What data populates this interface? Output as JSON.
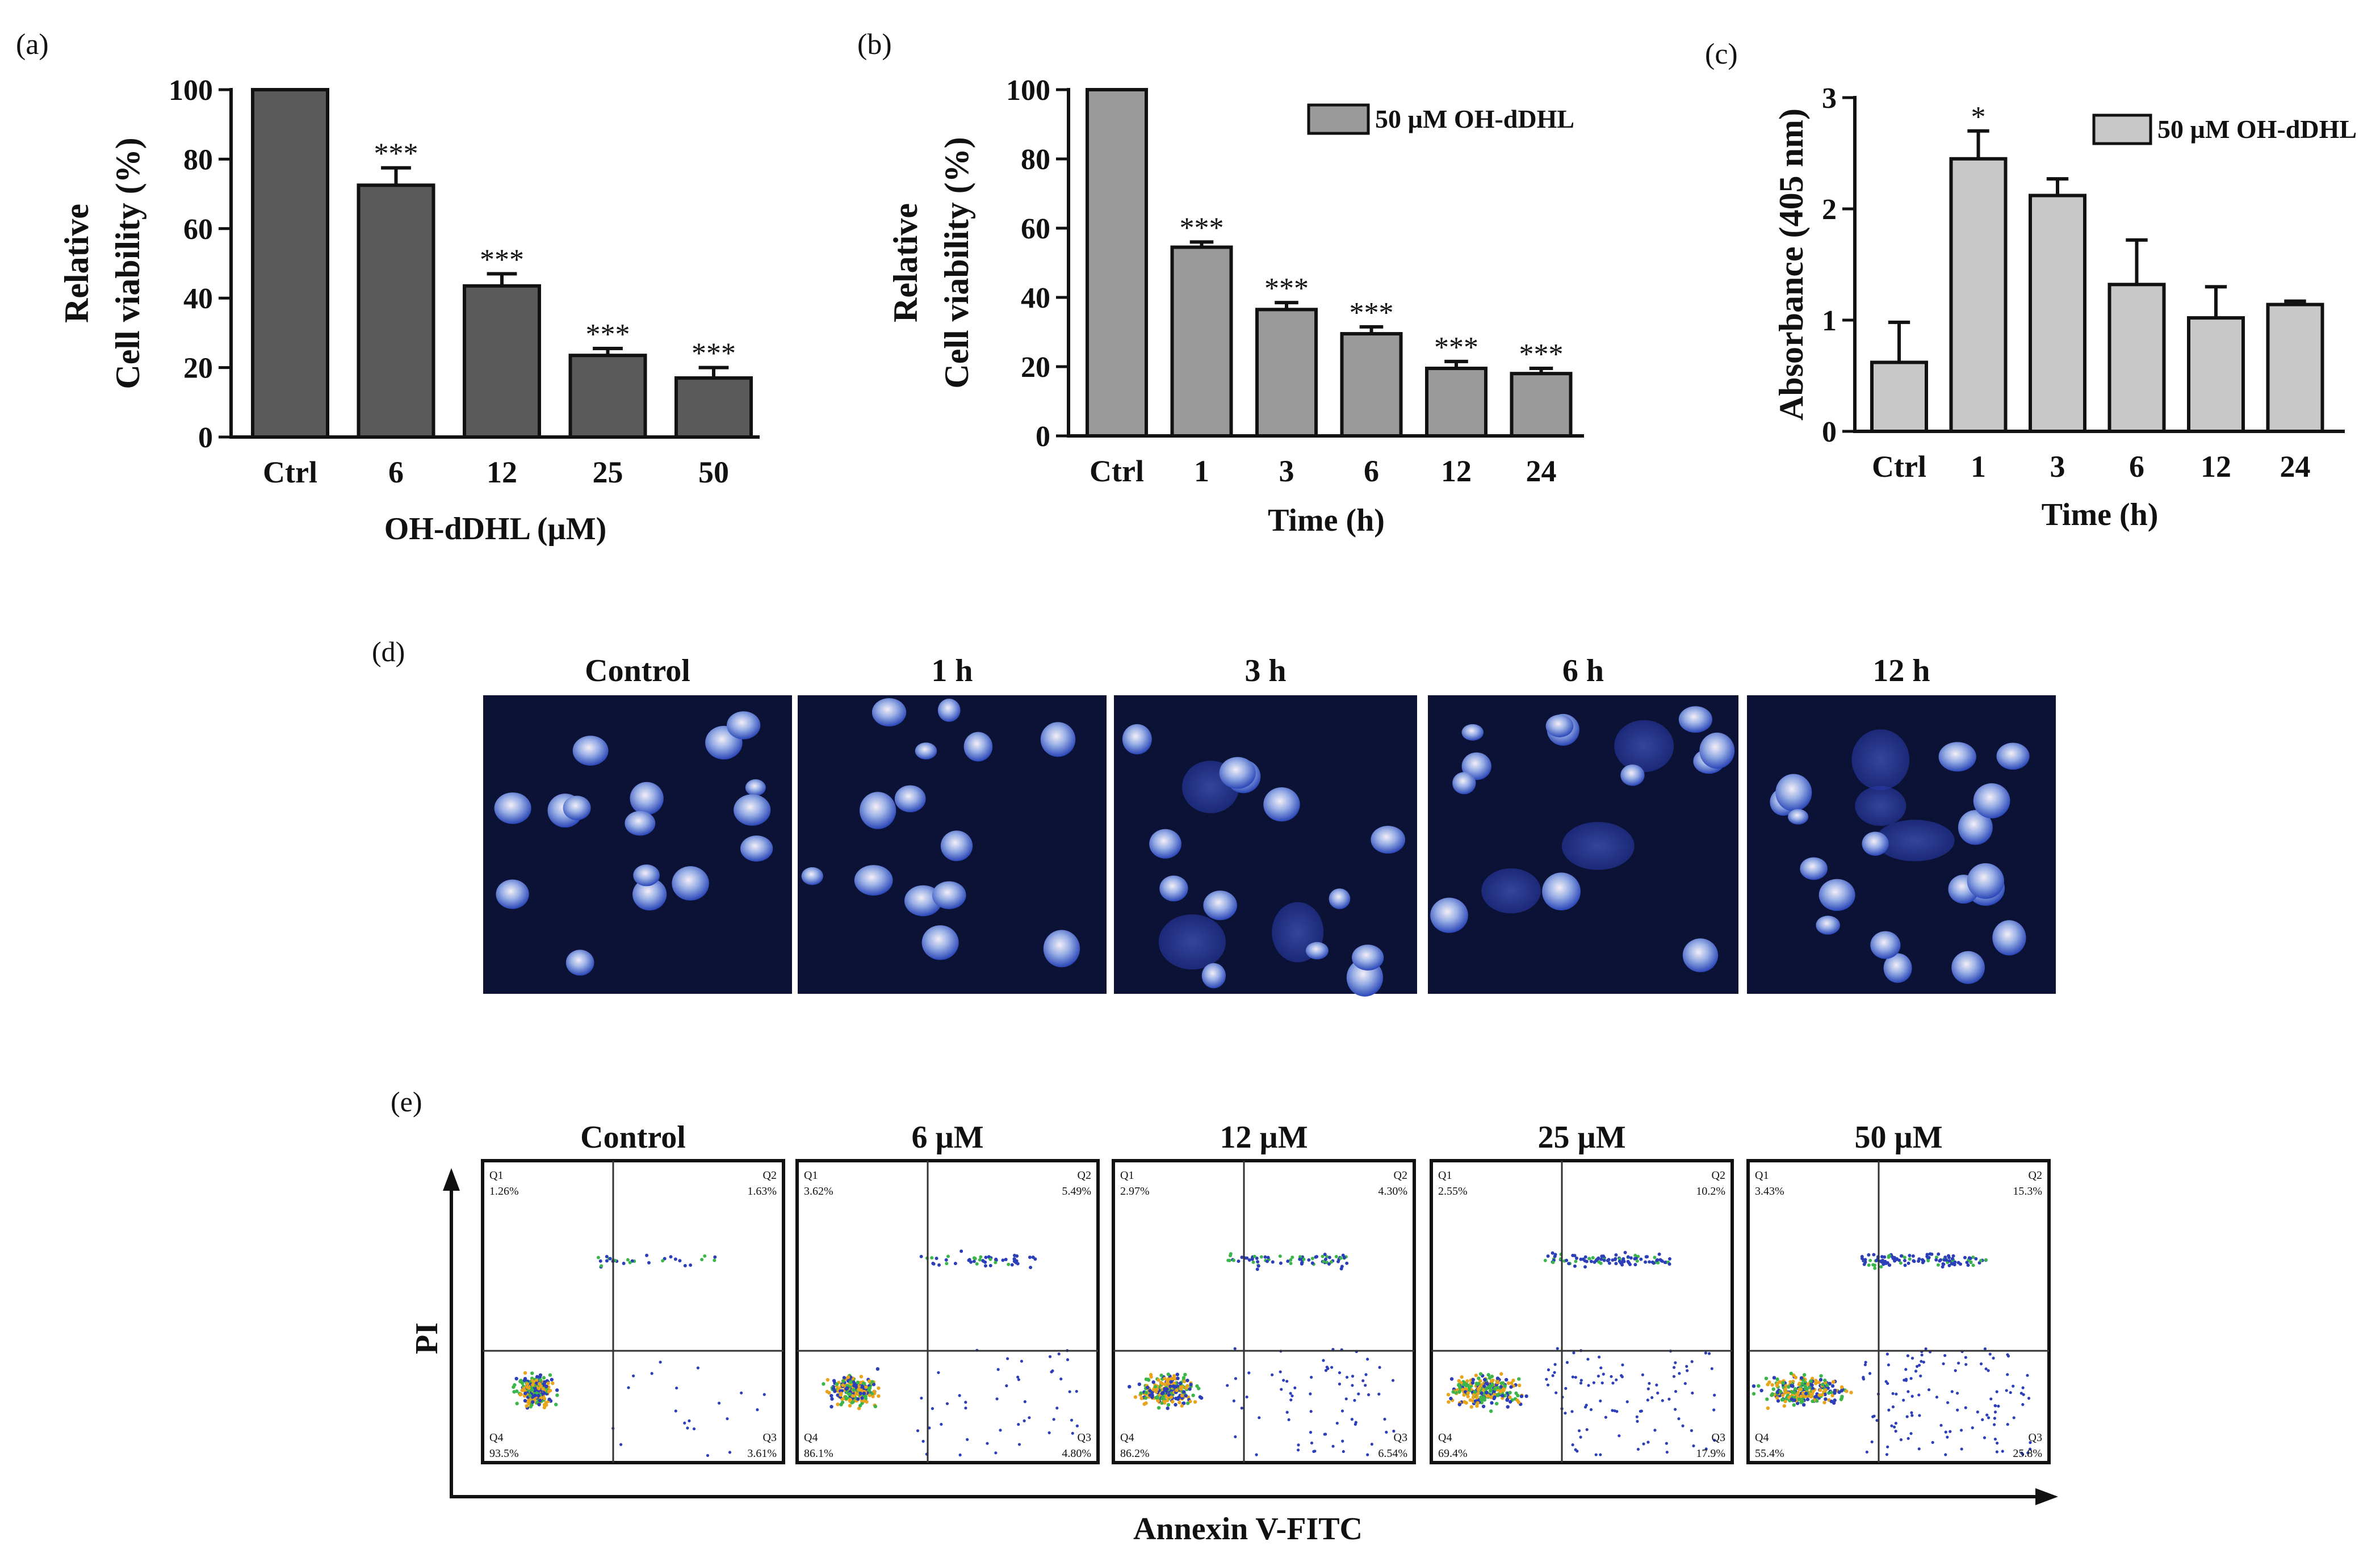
{
  "chart_data": [
    {
      "panel": "(a)",
      "type": "bar",
      "categories": [
        "Ctrl",
        "6",
        "12",
        "25",
        "50"
      ],
      "values": [
        100,
        72.5,
        43.5,
        23.5,
        17
      ],
      "errors": [
        0,
        5,
        3.5,
        2,
        3
      ],
      "significance": [
        "",
        "***",
        "***",
        "***",
        "***"
      ],
      "ylabel_lines": [
        "Relative",
        "Cell viability (%)"
      ],
      "xlabel": "OH-dDHL (µM)",
      "ylim": [
        0,
        100
      ],
      "yticks": [
        "0",
        "20",
        "40",
        "60",
        "80",
        "100"
      ],
      "bar_color": "#5a5a5a"
    },
    {
      "panel": "(b)",
      "type": "bar",
      "categories": [
        "Ctrl",
        "1",
        "3",
        "6",
        "12",
        "24"
      ],
      "values": [
        100,
        54.5,
        36.5,
        29.5,
        19.5,
        18
      ],
      "errors": [
        0,
        1.5,
        2,
        2,
        2,
        1.5
      ],
      "significance": [
        "",
        "***",
        "***",
        "***",
        "***",
        "***"
      ],
      "ylabel_lines": [
        "Relative",
        "Cell viability (%)"
      ],
      "xlabel": "Time (h)",
      "legend": "50 µM OH-dDHL",
      "ylim": [
        0,
        100
      ],
      "yticks": [
        "0",
        "20",
        "40",
        "60",
        "80",
        "100"
      ],
      "bar_color": "#9a9a9a"
    },
    {
      "panel": "(c)",
      "type": "bar",
      "categories": [
        "Ctrl",
        "1",
        "3",
        "6",
        "12",
        "24"
      ],
      "values": [
        0.62,
        2.45,
        2.12,
        1.32,
        1.02,
        1.14
      ],
      "errors": [
        0.36,
        0.25,
        0.15,
        0.4,
        0.28,
        0.03
      ],
      "significance": [
        "",
        "*",
        "",
        "",
        "",
        ""
      ],
      "ylabel_lines": [
        "Absorbance (405 nm)"
      ],
      "xlabel": "Time (h)",
      "legend": "50 µM OH-dDHL",
      "ylim": [
        0,
        3
      ],
      "yticks": [
        "0",
        "1",
        "2",
        "3"
      ],
      "bar_color": "#c8c8c8"
    }
  ],
  "panel_d": {
    "label": "(d)",
    "titles": [
      "Control",
      "1 h",
      "3 h",
      "6 h",
      "12 h"
    ]
  },
  "panel_e": {
    "label": "(e)",
    "titles": [
      "Control",
      "6 µM",
      "12 µM",
      "25 µM",
      "50 µM"
    ],
    "ylabel": "PI",
    "xlabel": "Annexin V-FITC",
    "quadrant_names": [
      "Q1",
      "Q2",
      "Q3",
      "Q4"
    ],
    "quadrants": [
      {
        "q1": "1.26%",
        "q2": "1.63%",
        "q3": "3.61%",
        "q4": "93.5%"
      },
      {
        "q1": "3.62%",
        "q2": "5.49%",
        "q3": "4.80%",
        "q4": "86.1%"
      },
      {
        "q1": "2.97%",
        "q2": "4.30%",
        "q3": "6.54%",
        "q4": "86.2%"
      },
      {
        "q1": "2.55%",
        "q2": "10.2%",
        "q3": "17.9%",
        "q4": "69.4%"
      },
      {
        "q1": "3.43%",
        "q2": "15.3%",
        "q3": "25.8%",
        "q4": "55.4%"
      }
    ]
  }
}
